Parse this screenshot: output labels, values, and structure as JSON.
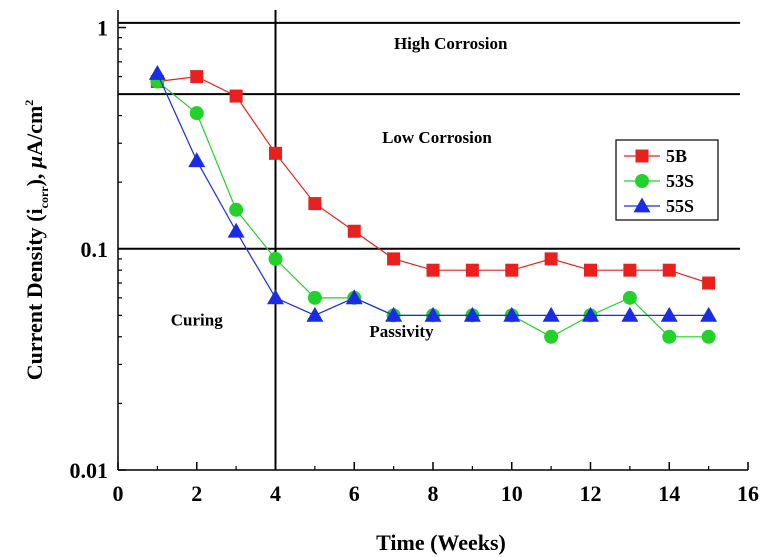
{
  "chart_data": {
    "type": "line",
    "title": "",
    "xlabel": "Time (Weeks)",
    "ylabel": {
      "prefix": "Current Density (i",
      "subscript": "corr",
      "middle": "), ",
      "mu": "μ",
      "unit": "A/cm",
      "superscript": "2"
    },
    "xlim": [
      0,
      16
    ],
    "ylim": [
      0.01,
      1.2
    ],
    "yscale": "log",
    "grid": false,
    "x_ticks": [
      "0",
      "2",
      "4",
      "6",
      "8",
      "10",
      "12",
      "14",
      "16"
    ],
    "y_ticks": [
      {
        "value": 0.01,
        "label": "0.01"
      },
      {
        "value": 0.1,
        "label": "0.1"
      },
      {
        "value": 1,
        "label": "1"
      }
    ],
    "legend_position": "right",
    "reference_lines": [
      {
        "orientation": "horizontal",
        "value": 1.05
      },
      {
        "orientation": "horizontal",
        "value": 0.5
      },
      {
        "orientation": "horizontal",
        "value": 0.1
      },
      {
        "orientation": "vertical",
        "value": 4
      }
    ],
    "annotations": [
      {
        "text": "High Corrosion",
        "x": 8.45,
        "y": 0.8
      },
      {
        "text": "Low Corrosion",
        "x": 8.1,
        "y": 0.3
      },
      {
        "text": "Curing",
        "x": 2.0,
        "y": 0.045
      },
      {
        "text": "Passivity",
        "x": 7.2,
        "y": 0.04
      }
    ],
    "series": [
      {
        "name": "5B",
        "color": "#e8201e",
        "marker": "square",
        "x": [
          1,
          2,
          3,
          4,
          5,
          6,
          7,
          8,
          9,
          10,
          11,
          12,
          13,
          14,
          15
        ],
        "values": [
          0.57,
          0.6,
          0.49,
          0.27,
          0.16,
          0.12,
          0.09,
          0.08,
          0.08,
          0.08,
          0.09,
          0.08,
          0.08,
          0.08,
          0.07
        ]
      },
      {
        "name": "53S",
        "color": "#22d22a",
        "marker": "circle",
        "x": [
          1,
          2,
          3,
          4,
          5,
          6,
          7,
          8,
          9,
          10,
          11,
          12,
          13,
          14,
          15
        ],
        "values": [
          0.57,
          0.41,
          0.15,
          0.09,
          0.06,
          0.06,
          0.05,
          0.05,
          0.05,
          0.05,
          0.04,
          0.05,
          0.06,
          0.04,
          0.04
        ]
      },
      {
        "name": "55S",
        "color": "#1a2ce6",
        "marker": "triangle",
        "x": [
          1,
          2,
          3,
          4,
          5,
          6,
          7,
          8,
          9,
          10,
          11,
          12,
          13,
          14,
          15
        ],
        "values": [
          0.62,
          0.25,
          0.12,
          0.06,
          0.05,
          0.06,
          0.05,
          0.05,
          0.05,
          0.05,
          0.05,
          0.05,
          0.05,
          0.05,
          0.05
        ]
      }
    ]
  }
}
